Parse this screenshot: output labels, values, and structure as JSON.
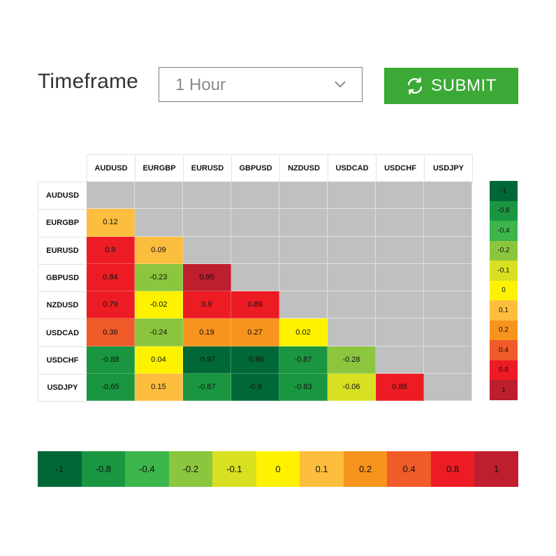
{
  "controls": {
    "timeframe_label": "Timeframe",
    "timeframe_value": "1 Hour",
    "submit_label": "SUBMIT",
    "submit_color": "#3aa935"
  },
  "matrix": {
    "columns": [
      "AUDUSD",
      "EURGBP",
      "EURUSD",
      "GBPUSD",
      "NZDUSD",
      "USDCAD",
      "USDCHF",
      "USDJPY"
    ],
    "rows": [
      {
        "label": "AUDUSD",
        "values": []
      },
      {
        "label": "EURGBP",
        "values": [
          "0.12"
        ]
      },
      {
        "label": "EURUSD",
        "values": [
          "0.9",
          "0.09"
        ]
      },
      {
        "label": "GBPUSD",
        "values": [
          "0.84",
          "-0.23",
          "0.95"
        ]
      },
      {
        "label": "NZDUSD",
        "values": [
          "0.79",
          "-0.02",
          "0.9",
          "0.89"
        ]
      },
      {
        "label": "USDCAD",
        "values": [
          "0.36",
          "-0.24",
          "0.19",
          "0.27",
          "0.02"
        ]
      },
      {
        "label": "USDCHF",
        "values": [
          "-0.88",
          "0.04",
          "-0.97",
          "-0.96",
          "-0.87",
          "-0.28"
        ]
      },
      {
        "label": "USDJPY",
        "values": [
          "-0.65",
          "0.15",
          "-0.87",
          "-0.9",
          "-0.83",
          "-0.06",
          "0.88"
        ]
      }
    ]
  },
  "legend": {
    "steps": [
      {
        "label": "-1",
        "color": "#006837"
      },
      {
        "label": "-0.8",
        "color": "#1a9641"
      },
      {
        "label": "-0.4",
        "color": "#3cb54a"
      },
      {
        "label": "-0.2",
        "color": "#8cc63f"
      },
      {
        "label": "-0.1",
        "color": "#d7e021"
      },
      {
        "label": "0",
        "color": "#fff200"
      },
      {
        "label": "0.1",
        "color": "#fdbd3f"
      },
      {
        "label": "0.2",
        "color": "#f7941d"
      },
      {
        "label": "0.4",
        "color": "#f15a29"
      },
      {
        "label": "0.8",
        "color": "#ed1c24"
      },
      {
        "label": "1",
        "color": "#be1e2d"
      }
    ],
    "empty_color": "#c0c0c0"
  }
}
